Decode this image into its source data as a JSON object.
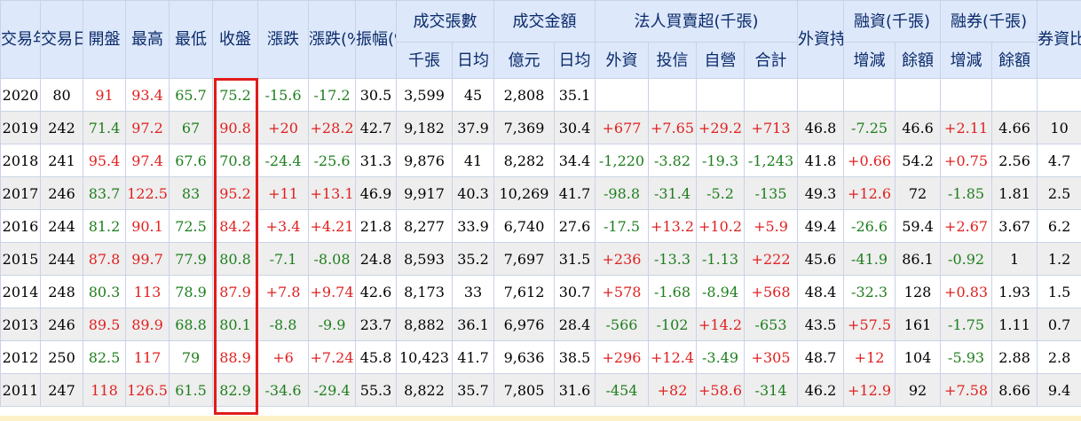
{
  "colors": {
    "header_bg": "#dde8fa",
    "header_text": "#0a2a6a",
    "positive": "#e02020",
    "negative": "#1e7e1e",
    "highlight": "#e21c1c"
  },
  "headers": {
    "year": "交易年度",
    "days": "交易日數",
    "open": "開盤",
    "high": "最高",
    "low": "最低",
    "close": "收盤",
    "change": "漲跌",
    "change_pct": "漲跌(%)",
    "amplitude": "振幅(%)",
    "volume_group": "成交張數",
    "value_group": "成交金額",
    "inst_group": "法人買賣超(千張)",
    "foreign_hold": "外資持股(%)",
    "margin_group": "融資(千張)",
    "short_group": "融券(千張)",
    "ratio": "券資比(%)",
    "sub": {
      "vol_total": "千張",
      "vol_daily": "日均",
      "val_total": "億元",
      "val_daily": "日均",
      "foreign": "外資",
      "trust": "投信",
      "dealer": "自營",
      "total": "合計",
      "margin_change": "增減",
      "margin_bal": "餘額",
      "short_change": "增減",
      "short_bal": "餘額"
    }
  },
  "rows": [
    {
      "year": "2020",
      "days": "80",
      "open": "91",
      "high": "93.4",
      "low": "65.7",
      "close": "75.2",
      "change": "-15.6",
      "change_pct": "-17.2",
      "amplitude": "30.5",
      "vol_total": "3,599",
      "vol_daily": "45",
      "val_total": "2,808",
      "val_daily": "35.1",
      "foreign": "",
      "trust": "",
      "dealer": "",
      "total": "",
      "foreign_hold": "",
      "margin_change": "",
      "margin_bal": "",
      "short_change": "",
      "short_bal": "",
      "ratio": ""
    },
    {
      "year": "2019",
      "days": "242",
      "open": "71.4",
      "high": "97.2",
      "low": "67",
      "close": "90.8",
      "change": "+20",
      "change_pct": "+28.2",
      "amplitude": "42.7",
      "vol_total": "9,182",
      "vol_daily": "37.9",
      "val_total": "7,369",
      "val_daily": "30.4",
      "foreign": "+677",
      "trust": "+7.65",
      "dealer": "+29.2",
      "total": "+713",
      "foreign_hold": "46.8",
      "margin_change": "-7.25",
      "margin_bal": "46.6",
      "short_change": "+2.11",
      "short_bal": "4.66",
      "ratio": "10"
    },
    {
      "year": "2018",
      "days": "241",
      "open": "95.4",
      "high": "97.4",
      "low": "67.6",
      "close": "70.8",
      "change": "-24.4",
      "change_pct": "-25.6",
      "amplitude": "31.3",
      "vol_total": "9,876",
      "vol_daily": "41",
      "val_total": "8,282",
      "val_daily": "34.4",
      "foreign": "-1,220",
      "trust": "-3.82",
      "dealer": "-19.3",
      "total": "-1,243",
      "foreign_hold": "41.8",
      "margin_change": "+0.66",
      "margin_bal": "54.2",
      "short_change": "+0.75",
      "short_bal": "2.56",
      "ratio": "4.7"
    },
    {
      "year": "2017",
      "days": "246",
      "open": "83.7",
      "high": "122.5",
      "low": "83",
      "close": "95.2",
      "change": "+11",
      "change_pct": "+13.1",
      "amplitude": "46.9",
      "vol_total": "9,917",
      "vol_daily": "40.3",
      "val_total": "10,269",
      "val_daily": "41.7",
      "foreign": "-98.8",
      "trust": "-31.4",
      "dealer": "-5.2",
      "total": "-135",
      "foreign_hold": "49.3",
      "margin_change": "+12.6",
      "margin_bal": "72",
      "short_change": "-1.85",
      "short_bal": "1.81",
      "ratio": "2.5"
    },
    {
      "year": "2016",
      "days": "244",
      "open": "81.2",
      "high": "90.1",
      "low": "72.5",
      "close": "84.2",
      "change": "+3.4",
      "change_pct": "+4.21",
      "amplitude": "21.8",
      "vol_total": "8,277",
      "vol_daily": "33.9",
      "val_total": "6,740",
      "val_daily": "27.6",
      "foreign": "-17.5",
      "trust": "+13.2",
      "dealer": "+10.2",
      "total": "+5.9",
      "foreign_hold": "49.4",
      "margin_change": "-26.6",
      "margin_bal": "59.4",
      "short_change": "+2.67",
      "short_bal": "3.67",
      "ratio": "6.2"
    },
    {
      "year": "2015",
      "days": "244",
      "open": "87.8",
      "high": "99.7",
      "low": "77.9",
      "close": "80.8",
      "change": "-7.1",
      "change_pct": "-8.08",
      "amplitude": "24.8",
      "vol_total": "8,593",
      "vol_daily": "35.2",
      "val_total": "7,697",
      "val_daily": "31.5",
      "foreign": "+236",
      "trust": "-13.3",
      "dealer": "-1.13",
      "total": "+222",
      "foreign_hold": "45.6",
      "margin_change": "-41.9",
      "margin_bal": "86.1",
      "short_change": "-0.92",
      "short_bal": "1",
      "ratio": "1.2"
    },
    {
      "year": "2014",
      "days": "248",
      "open": "80.3",
      "high": "113",
      "low": "78.9",
      "close": "87.9",
      "change": "+7.8",
      "change_pct": "+9.74",
      "amplitude": "42.6",
      "vol_total": "8,173",
      "vol_daily": "33",
      "val_total": "7,612",
      "val_daily": "30.7",
      "foreign": "+578",
      "trust": "-1.68",
      "dealer": "-8.94",
      "total": "+568",
      "foreign_hold": "48.4",
      "margin_change": "-32.3",
      "margin_bal": "128",
      "short_change": "+0.83",
      "short_bal": "1.93",
      "ratio": "1.5"
    },
    {
      "year": "2013",
      "days": "246",
      "open": "89.5",
      "high": "89.9",
      "low": "68.8",
      "close": "80.1",
      "change": "-8.8",
      "change_pct": "-9.9",
      "amplitude": "23.7",
      "vol_total": "8,882",
      "vol_daily": "36.1",
      "val_total": "6,976",
      "val_daily": "28.4",
      "foreign": "-566",
      "trust": "-102",
      "dealer": "+14.2",
      "total": "-653",
      "foreign_hold": "43.5",
      "margin_change": "+57.5",
      "margin_bal": "161",
      "short_change": "-1.75",
      "short_bal": "1.11",
      "ratio": "0.7"
    },
    {
      "year": "2012",
      "days": "250",
      "open": "82.5",
      "high": "117",
      "low": "79",
      "close": "88.9",
      "change": "+6",
      "change_pct": "+7.24",
      "amplitude": "45.8",
      "vol_total": "10,423",
      "vol_daily": "41.7",
      "val_total": "9,636",
      "val_daily": "38.5",
      "foreign": "+296",
      "trust": "+12.4",
      "dealer": "-3.49",
      "total": "+305",
      "foreign_hold": "48.7",
      "margin_change": "+12",
      "margin_bal": "104",
      "short_change": "-5.93",
      "short_bal": "2.88",
      "ratio": "2.8"
    },
    {
      "year": "2011",
      "days": "247",
      "open": "118",
      "high": "126.5",
      "low": "61.5",
      "close": "82.9",
      "change": "-34.6",
      "change_pct": "-29.4",
      "amplitude": "55.3",
      "vol_total": "8,822",
      "vol_daily": "35.7",
      "val_total": "7,805",
      "val_daily": "31.6",
      "foreign": "-454",
      "trust": "+82",
      "dealer": "+58.6",
      "total": "-314",
      "foreign_hold": "46.2",
      "margin_change": "+12.9",
      "margin_bal": "92",
      "short_change": "+7.58",
      "short_bal": "8.66",
      "ratio": "9.4"
    }
  ]
}
